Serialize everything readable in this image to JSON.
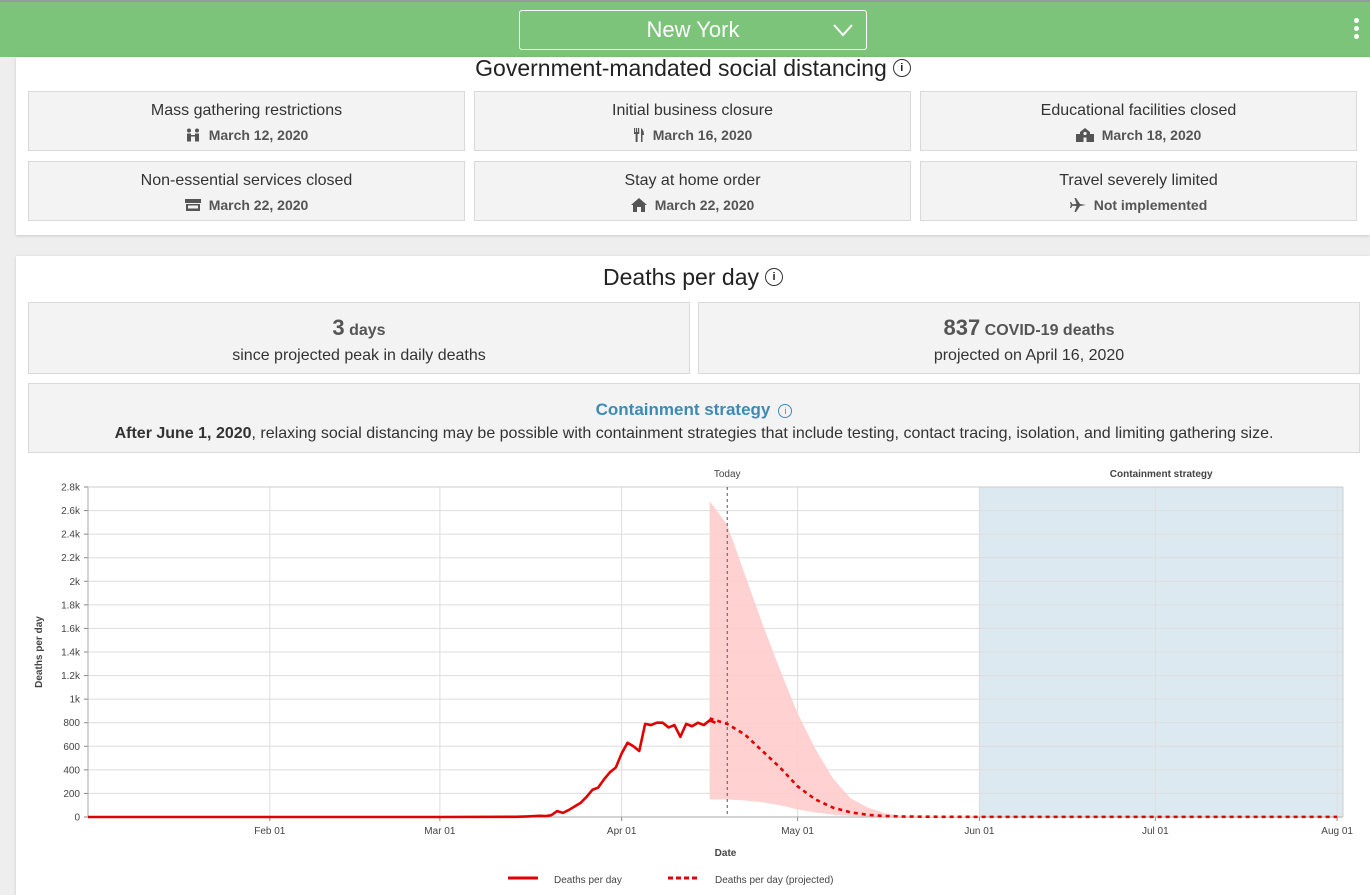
{
  "header": {
    "state": "New York"
  },
  "distancing": {
    "title": "Government-mandated social distancing",
    "info_icon": "i",
    "policies": [
      {
        "title": "Mass gathering restrictions",
        "date": "March 12, 2020",
        "icon": "people-icon"
      },
      {
        "title": "Initial business closure",
        "date": "March 16, 2020",
        "icon": "fork-knife-icon"
      },
      {
        "title": "Educational facilities closed",
        "date": "March 18, 2020",
        "icon": "school-icon"
      },
      {
        "title": "Non-essential services closed",
        "date": "March 22, 2020",
        "icon": "store-icon"
      },
      {
        "title": "Stay at home order",
        "date": "March 22, 2020",
        "icon": "home-icon"
      },
      {
        "title": "Travel severely limited",
        "date": "Not implemented",
        "icon": "plane-icon"
      }
    ]
  },
  "deaths": {
    "title": "Deaths per day",
    "info_icon": "i",
    "peak_days_value": "3",
    "peak_days_unit": "days",
    "peak_caption": "since projected peak in daily deaths",
    "projected_value": "837",
    "projected_unit": "COVID-19 deaths",
    "projected_caption": "projected on April 16, 2020",
    "strategy_title": "Containment strategy",
    "strategy_info": "i",
    "strategy_date": "After June 1, 2020",
    "strategy_text": ", relaxing social distancing may be possible with containment strategies that include testing, contact tracing, isolation, and limiting gathering size."
  },
  "colors": {
    "header_green": "#7bc47a",
    "deaths_red": "#e00000",
    "uncertainty_pink": "#ffcccc",
    "containment_blue": "#dde9f1",
    "strategy_text_blue": "#3d8bb5"
  },
  "chart_data": {
    "type": "line",
    "xlabel": "Date",
    "ylabel": "Deaths per day",
    "ylim": [
      0,
      2800
    ],
    "yticks": [
      0,
      200,
      400,
      600,
      800,
      1000,
      1200,
      1400,
      1600,
      1800,
      2000,
      2200,
      2400,
      2600,
      2800
    ],
    "ytick_labels": [
      "0",
      "200",
      "400",
      "600",
      "800",
      "1k",
      "1.2k",
      "1.4k",
      "1.6k",
      "1.8k",
      "2k",
      "2.2k",
      "2.4k",
      "2.6k",
      "2.8k"
    ],
    "xlim": [
      "2020-01-01",
      "2020-08-02"
    ],
    "xticks": [
      "2020-02-01",
      "2020-03-01",
      "2020-04-01",
      "2020-05-01",
      "2020-06-01",
      "2020-07-01",
      "2020-08-01"
    ],
    "xtick_labels": [
      "Feb 01",
      "Mar 01",
      "Apr 01",
      "May 01",
      "Jun 01",
      "Jul 01",
      "Aug 01"
    ],
    "today": "2020-04-19",
    "today_label": "Today",
    "containment_start": "2020-06-01",
    "containment_label": "Containment strategy",
    "grid": true,
    "legend_position": "bottom",
    "series": [
      {
        "name": "Deaths per day",
        "style": "solid",
        "x": [
          "2020-01-01",
          "2020-03-01",
          "2020-03-14",
          "2020-03-16",
          "2020-03-18",
          "2020-03-19",
          "2020-03-20",
          "2020-03-21",
          "2020-03-22",
          "2020-03-23",
          "2020-03-24",
          "2020-03-25",
          "2020-03-26",
          "2020-03-27",
          "2020-03-28",
          "2020-03-29",
          "2020-03-30",
          "2020-03-31",
          "2020-04-01",
          "2020-04-02",
          "2020-04-03",
          "2020-04-04",
          "2020-04-05",
          "2020-04-06",
          "2020-04-07",
          "2020-04-08",
          "2020-04-09",
          "2020-04-10",
          "2020-04-11",
          "2020-04-12",
          "2020-04-13",
          "2020-04-14",
          "2020-04-15",
          "2020-04-16",
          "2020-04-17"
        ],
        "values": [
          0,
          0,
          2,
          5,
          10,
          8,
          15,
          50,
          35,
          60,
          90,
          120,
          170,
          230,
          250,
          320,
          380,
          420,
          540,
          630,
          600,
          560,
          790,
          780,
          800,
          800,
          760,
          780,
          680,
          790,
          770,
          800,
          780,
          820,
          800
        ]
      },
      {
        "name": "Deaths per day (projected)",
        "style": "dashed",
        "x": [
          "2020-04-16",
          "2020-04-19",
          "2020-04-22",
          "2020-04-25",
          "2020-04-28",
          "2020-05-01",
          "2020-05-04",
          "2020-05-07",
          "2020-05-10",
          "2020-05-13",
          "2020-05-16",
          "2020-05-19",
          "2020-05-25",
          "2020-06-01",
          "2020-07-01",
          "2020-08-01"
        ],
        "values": [
          837,
          790,
          700,
          560,
          420,
          260,
          150,
          80,
          40,
          18,
          8,
          4,
          2,
          1,
          1,
          1
        ]
      }
    ],
    "uncertainty_band": {
      "x": [
        "2020-04-16",
        "2020-04-19",
        "2020-04-22",
        "2020-04-25",
        "2020-04-28",
        "2020-05-01",
        "2020-05-04",
        "2020-05-07",
        "2020-05-10",
        "2020-05-13",
        "2020-05-16",
        "2020-05-19",
        "2020-05-25",
        "2020-06-01"
      ],
      "upper": [
        2680,
        2480,
        2060,
        1640,
        1250,
        880,
        580,
        330,
        160,
        80,
        30,
        10,
        3,
        1
      ],
      "lower": [
        150,
        150,
        140,
        125,
        100,
        65,
        38,
        20,
        10,
        4,
        2,
        1,
        0,
        0
      ]
    }
  }
}
